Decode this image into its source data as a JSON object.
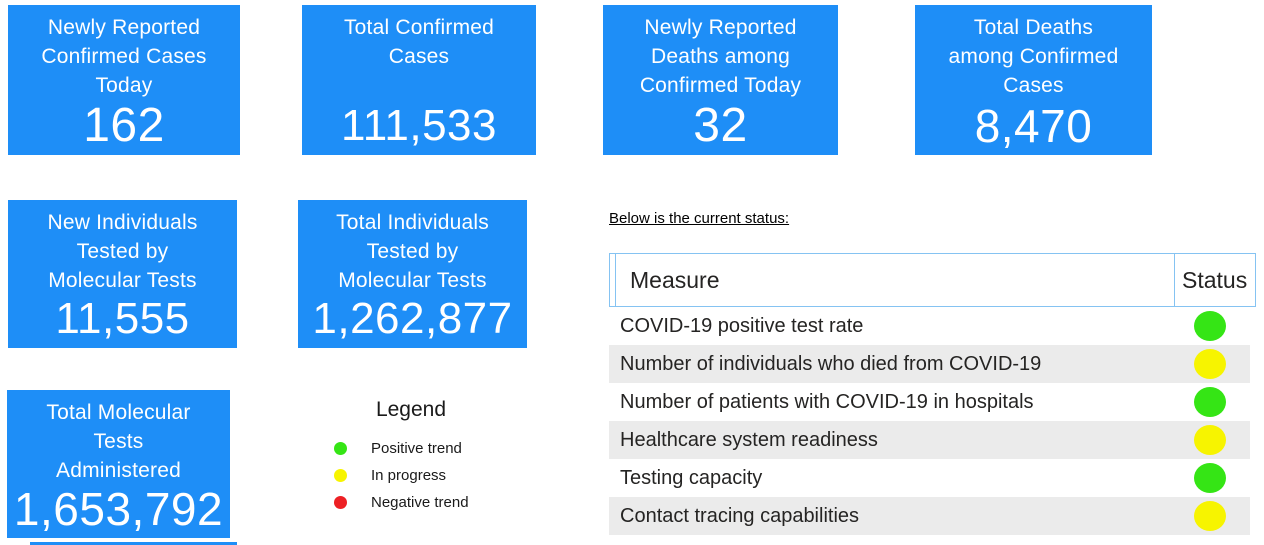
{
  "colors": {
    "card_blue": "#1E8EF7",
    "table_border_blue": "#85C3F2",
    "row_alt_gray": "#EBEBEB",
    "green": "#35E515",
    "yellow": "#F7F400",
    "red": "#ED2024"
  },
  "cards": [
    {
      "title": "Newly Reported\nConfirmed Cases\nToday",
      "value": "162"
    },
    {
      "title": "Total Confirmed\nCases",
      "value": "111,533"
    },
    {
      "title": "Newly Reported\nDeaths among\nConfirmed Today",
      "value": "32"
    },
    {
      "title": "Total Deaths\namong Confirmed\nCases",
      "value": "8,470"
    },
    {
      "title": "New Individuals\nTested by\nMolecular Tests",
      "value": "11,555"
    },
    {
      "title": "Total Individuals\nTested by\nMolecular Tests",
      "value": "1,262,877"
    },
    {
      "title": "Total Molecular\nTests\nAdministered",
      "value": "1,653,792"
    }
  ],
  "status_section": {
    "heading": "Below is the current status:",
    "table": {
      "measure_header": "Measure",
      "status_header": "Status",
      "rows": [
        {
          "measure": "COVID-19 positive test rate",
          "status": "green"
        },
        {
          "measure": "Number of individuals who died from COVID-19",
          "status": "yellow"
        },
        {
          "measure": "Number of patients with COVID-19 in hospitals",
          "status": "green"
        },
        {
          "measure": "Healthcare system readiness",
          "status": "yellow"
        },
        {
          "measure": "Testing capacity",
          "status": "green"
        },
        {
          "measure": "Contact tracing capabilities",
          "status": "yellow"
        }
      ]
    }
  },
  "legend": {
    "title": "Legend",
    "items": [
      {
        "label": "Positive trend",
        "color": "green"
      },
      {
        "label": "In progress",
        "color": "yellow"
      },
      {
        "label": "Negative trend",
        "color": "red"
      }
    ]
  }
}
